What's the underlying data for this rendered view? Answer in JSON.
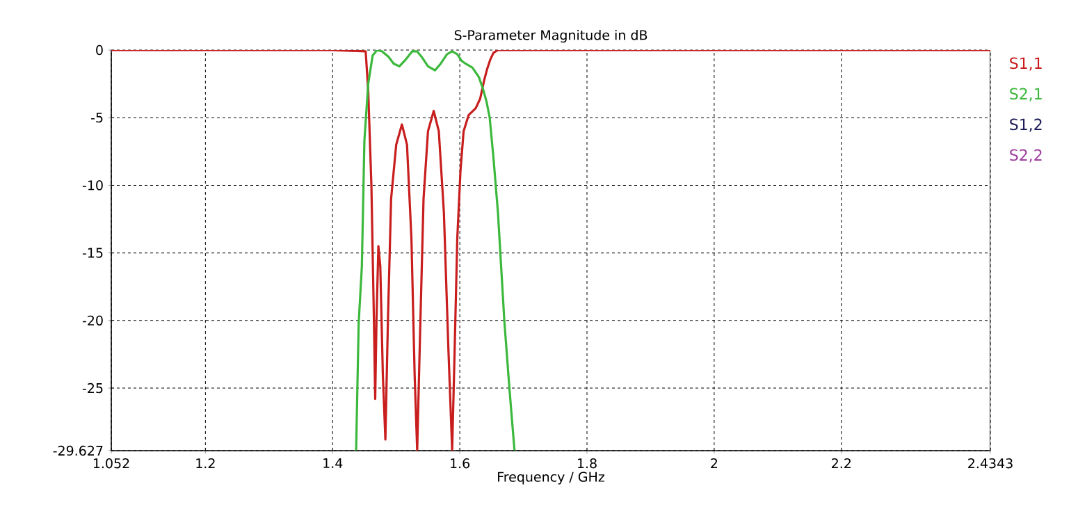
{
  "chart_data": {
    "type": "line",
    "title": "S-Parameter Magnitude in dB",
    "xlabel": "Frequency / GHz",
    "xlim": [
      1.052,
      2.4343
    ],
    "ylim": [
      -29.627,
      0
    ],
    "xticks": [
      1.052,
      1.2,
      1.4,
      1.6,
      1.8,
      2,
      2.2,
      2.4343
    ],
    "yticks": [
      -29.627,
      -25,
      -20,
      -15,
      -10,
      -5,
      0
    ],
    "grid": true,
    "legend": "right",
    "line_style": "solid",
    "marker": "none",
    "series": [
      {
        "name": "S1,1",
        "color": "#c81e1e",
        "x": [
          1.052,
          1.2,
          1.4,
          1.452,
          1.456,
          1.461,
          1.465,
          1.467,
          1.469,
          1.472,
          1.475,
          1.479,
          1.483,
          1.487,
          1.492,
          1.5,
          1.509,
          1.517,
          1.524,
          1.529,
          1.533,
          1.537,
          1.543,
          1.55,
          1.559,
          1.567,
          1.575,
          1.582,
          1.588,
          1.592,
          1.596,
          1.601,
          1.606,
          1.614,
          1.625,
          1.632,
          1.638,
          1.643,
          1.648,
          1.653,
          1.66,
          1.68,
          1.8,
          2.0,
          2.2,
          2.4343
        ],
        "values": [
          0,
          0,
          0,
          -0.1,
          -3,
          -10,
          -20,
          -25.8,
          -20,
          -14.5,
          -16,
          -24,
          -28.8,
          -20,
          -11,
          -7,
          -5.5,
          -7,
          -14,
          -24,
          -29.6,
          -22,
          -11,
          -6,
          -4.5,
          -6,
          -12,
          -22,
          -29.6,
          -22,
          -14,
          -9,
          -6,
          -4.8,
          -4.3,
          -3.6,
          -2.3,
          -1.4,
          -0.7,
          -0.2,
          0,
          0,
          0,
          0,
          0,
          0
        ]
      },
      {
        "name": "S2,1",
        "color": "#3cb83c",
        "x": [
          1.437,
          1.441,
          1.446,
          1.45,
          1.456,
          1.463,
          1.47,
          1.478,
          1.488,
          1.496,
          1.505,
          1.515,
          1.525,
          1.533,
          1.54,
          1.55,
          1.561,
          1.57,
          1.58,
          1.588,
          1.596,
          1.603,
          1.609,
          1.62,
          1.63,
          1.636,
          1.642,
          1.647,
          1.653,
          1.66,
          1.67,
          1.678,
          1.686
        ],
        "values": [
          -29.6,
          -20.2,
          -16,
          -6.7,
          -2.5,
          -0.4,
          0,
          -0.1,
          -0.5,
          -1,
          -1.2,
          -0.7,
          -0.1,
          -0.1,
          -0.5,
          -1.2,
          -1.5,
          -1,
          -0.3,
          -0.1,
          -0.3,
          -0.8,
          -1,
          -1.3,
          -2,
          -2.8,
          -3.8,
          -5,
          -8,
          -12,
          -20,
          -25,
          -29.6
        ]
      },
      {
        "name": "S1,2",
        "color": "#1e1e5a"
      },
      {
        "name": "S2,2",
        "color": "#a040a0"
      }
    ]
  }
}
